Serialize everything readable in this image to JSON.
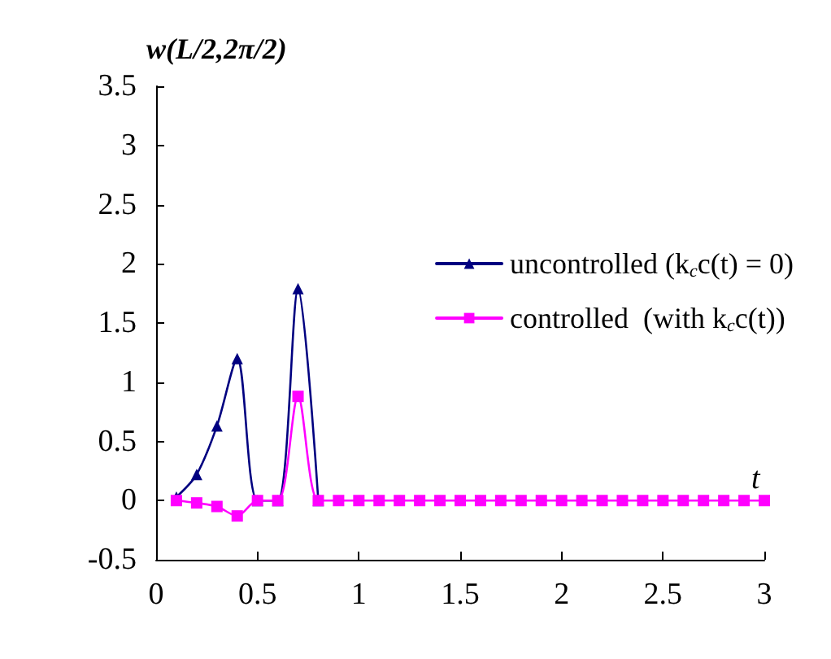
{
  "chart_data": {
    "type": "line",
    "ylabel": "w(L/2,2π/2)",
    "xlabel": "t",
    "x": [
      0.1,
      0.2,
      0.3,
      0.4,
      0.5,
      0.6,
      0.7,
      0.8,
      0.9,
      1.0,
      1.1,
      1.2,
      1.3,
      1.4,
      1.5,
      1.6,
      1.7,
      1.8,
      1.9,
      2.0,
      2.1,
      2.2,
      2.3,
      2.4,
      2.5,
      2.6,
      2.7,
      2.8,
      2.9,
      3.0
    ],
    "series": [
      {
        "name": "uncontrolled (k$_{c}$c(t) = 0)",
        "color": "#000080",
        "marker": "triangle",
        "values": [
          0.03,
          0.22,
          0.63,
          1.2,
          0,
          0,
          1.79,
          0,
          null,
          null,
          null,
          null,
          null,
          null,
          null,
          null,
          null,
          null,
          null,
          null,
          null,
          null,
          null,
          null,
          null,
          null,
          null,
          null,
          null,
          null
        ]
      },
      {
        "name": "controlled  (with k$_{c}$c(t))",
        "color": "#ff00ff",
        "marker": "square",
        "values": [
          0,
          -0.02,
          -0.05,
          -0.13,
          0,
          0,
          0.88,
          0,
          0,
          0,
          0,
          0,
          0,
          0,
          0,
          0,
          0,
          0,
          0,
          0,
          0,
          0,
          0,
          0,
          0,
          0,
          0,
          0,
          0,
          0
        ]
      }
    ],
    "xlim": [
      0,
      3
    ],
    "xticks": [
      0,
      0.5,
      1,
      1.5,
      2,
      2.5,
      3
    ],
    "ylim": [
      -0.5,
      3.5
    ],
    "yticks": [
      -0.5,
      0,
      0.5,
      1,
      1.5,
      2,
      2.5,
      3,
      3.5
    ],
    "grid": false,
    "legend": "right",
    "line_style": "solid"
  }
}
